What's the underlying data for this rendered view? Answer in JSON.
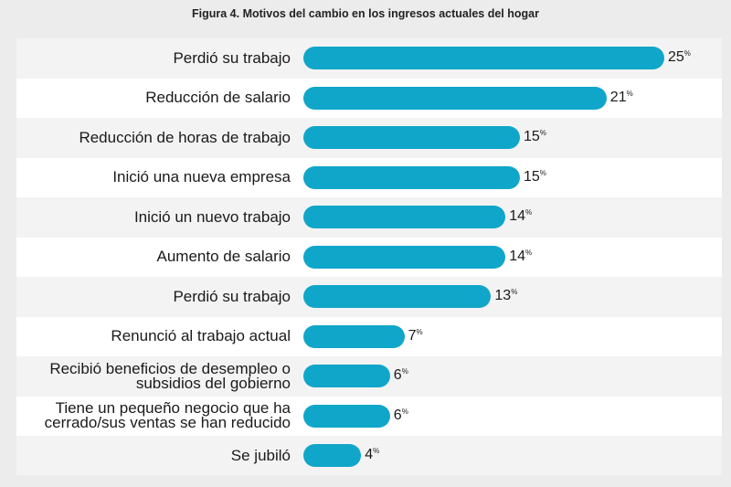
{
  "chart_data": {
    "type": "bar",
    "orientation": "horizontal",
    "title": "Figura 4. Motivos del cambio en los ingresos actuales del hogar",
    "unit": "%",
    "xlabel": "",
    "ylabel": "",
    "xlim": [
      0,
      25
    ],
    "categories": [
      "Perdió su trabajo",
      "Reducción de salario",
      "Reducción de horas de trabajo",
      "Inició una nueva empresa",
      "Inició un nuevo trabajo",
      "Aumento de salario",
      "Perdió su trabajo",
      "Renunció al trabajo actual",
      "Recibió beneficios de desempleo o subsidios del gobierno",
      "Tiene un pequeño negocio que ha cerrado/sus ventas se han reducido",
      "Se jubiló"
    ],
    "values": [
      25,
      21,
      15,
      15,
      14,
      14,
      13,
      7,
      6,
      6,
      4
    ],
    "bar_color": "#10a6c9"
  }
}
